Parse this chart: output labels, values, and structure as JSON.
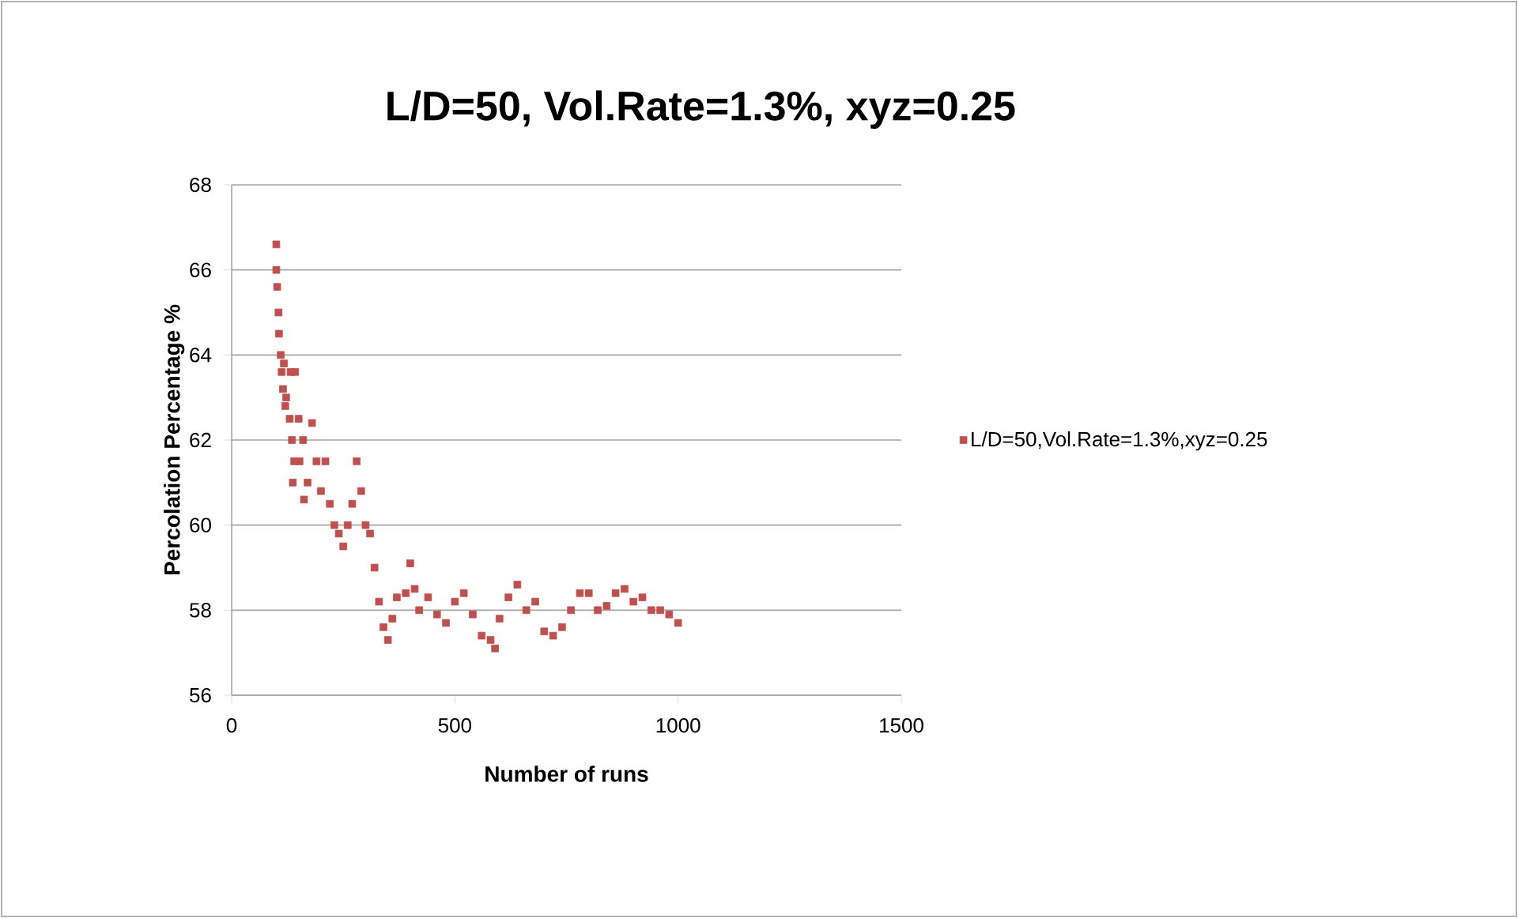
{
  "chart_data": {
    "type": "scatter",
    "title": "L/D=50, Vol.Rate=1.3%, xyz=0.25",
    "xlabel": "Number of runs",
    "ylabel": "Percolation Percentage %",
    "x": [
      100,
      100,
      102,
      105,
      106,
      110,
      112,
      115,
      117,
      120,
      122,
      130,
      132,
      135,
      137,
      140,
      142,
      150,
      152,
      160,
      162,
      170,
      180,
      190,
      200,
      210,
      220,
      230,
      240,
      250,
      260,
      270,
      280,
      290,
      300,
      310,
      320,
      330,
      340,
      350,
      360,
      370,
      390,
      400,
      410,
      420,
      440,
      460,
      480,
      500,
      520,
      540,
      560,
      580,
      590,
      600,
      620,
      640,
      660,
      680,
      700,
      720,
      740,
      760,
      780,
      800,
      820,
      840,
      860,
      880,
      900,
      920,
      940,
      960,
      980,
      1000
    ],
    "series": [
      {
        "name": "L/D=50,Vol.Rate=1.3%,xyz=0.25",
        "color": "#c0504d",
        "values": [
          66.6,
          66.0,
          65.6,
          65.0,
          64.5,
          64.0,
          63.6,
          63.2,
          63.8,
          62.8,
          63.0,
          62.5,
          63.6,
          62.0,
          61.0,
          61.5,
          63.6,
          62.5,
          61.5,
          62.0,
          60.6,
          61.0,
          62.4,
          61.5,
          60.8,
          61.5,
          60.5,
          60.0,
          59.8,
          59.5,
          60.0,
          60.5,
          61.5,
          60.8,
          60.0,
          59.8,
          59.0,
          58.2,
          57.6,
          57.3,
          57.8,
          58.3,
          58.4,
          59.1,
          58.5,
          58.0,
          58.3,
          57.9,
          57.7,
          58.2,
          58.4,
          57.9,
          57.4,
          57.3,
          57.1,
          57.8,
          58.3,
          58.6,
          58.0,
          58.2,
          57.5,
          57.4,
          57.6,
          58.0,
          58.4,
          58.4,
          58.0,
          58.1,
          58.4,
          58.5,
          58.2,
          58.3,
          58.0,
          58.0,
          57.9,
          57.7
        ]
      }
    ],
    "xlim": [
      0,
      1500
    ],
    "xticks": [
      0,
      500,
      1000,
      1500
    ],
    "ylim": [
      56,
      68
    ],
    "yticks": [
      56,
      58,
      60,
      62,
      64,
      66,
      68
    ],
    "grid": "y",
    "legend": "right",
    "marker": "square"
  }
}
